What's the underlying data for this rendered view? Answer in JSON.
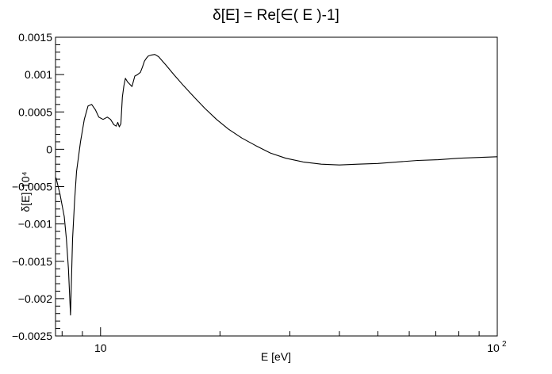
{
  "chart_data": {
    "type": "line",
    "title": "δ[E] = Re[∈( E )-1]",
    "xlabel": "E [eV]",
    "ylabel": "δ[E]·10⁴",
    "xscale": "log",
    "xlim": [
      7.7,
      100
    ],
    "ylim": [
      -0.0025,
      0.0015
    ],
    "grid": false,
    "x_tick_labels": [
      {
        "value": 10,
        "label": "10"
      },
      {
        "value": 100,
        "label": "10",
        "exponent": "2"
      }
    ],
    "y_ticks": [
      {
        "value": 0.0015,
        "label": "0.0015"
      },
      {
        "value": 0.001,
        "label": "0.001"
      },
      {
        "value": 0.0005,
        "label": "0.0005"
      },
      {
        "value": 0,
        "label": "0"
      },
      {
        "value": -0.0005,
        "label": "−0.0005"
      },
      {
        "value": -0.001,
        "label": "−0.001"
      },
      {
        "value": -0.0015,
        "label": "−0.0015"
      },
      {
        "value": -0.002,
        "label": "−0.002"
      },
      {
        "value": -0.0025,
        "label": "−0.0025"
      }
    ],
    "series": [
      {
        "x": [
          7.72,
          7.9,
          8.1,
          8.2,
          8.3,
          8.4,
          8.5,
          8.6,
          8.7,
          8.9,
          9.1,
          9.3,
          9.5,
          9.7,
          9.9,
          10.15,
          10.4,
          10.6,
          10.8,
          10.95,
          11.05,
          11.15,
          11.25,
          11.35,
          11.45,
          11.55,
          11.7,
          11.85,
          12.0,
          12.2,
          12.4,
          12.6,
          12.75,
          12.9,
          13.05,
          13.2,
          13.4,
          13.7,
          14.0,
          14.6,
          15.3,
          16.2,
          17.2,
          18.3,
          19.6,
          21.0,
          22.7,
          24.6,
          26.8,
          29.3,
          32.4,
          36.0,
          40.0,
          44.5,
          50.0,
          56.0,
          63.0,
          71.0,
          80.0,
          90.0,
          100.0
        ],
        "y": [
          -0.00038,
          -0.0006,
          -0.0009,
          -0.0012,
          -0.0016,
          -0.00222,
          -0.0012,
          -0.0007,
          -0.0003,
          0.0001,
          0.0004,
          0.00058,
          0.0006,
          0.00053,
          0.00043,
          0.0004,
          0.00043,
          0.0004,
          0.00033,
          0.00031,
          0.00036,
          0.0003,
          0.00034,
          0.0007,
          0.00085,
          0.00095,
          0.0009,
          0.00087,
          0.00084,
          0.00098,
          0.001,
          0.00103,
          0.0011,
          0.00118,
          0.00122,
          0.00125,
          0.00126,
          0.00127,
          0.00124,
          0.00113,
          0.001,
          0.00085,
          0.0007,
          0.00055,
          0.0004,
          0.00027,
          0.00015,
          5e-05,
          -5e-05,
          -0.00012,
          -0.00017,
          -0.0002,
          -0.00021,
          -0.0002,
          -0.00019,
          -0.00017,
          -0.00015,
          -0.00014,
          -0.00012,
          -0.00011,
          -0.0001
        ]
      }
    ]
  }
}
